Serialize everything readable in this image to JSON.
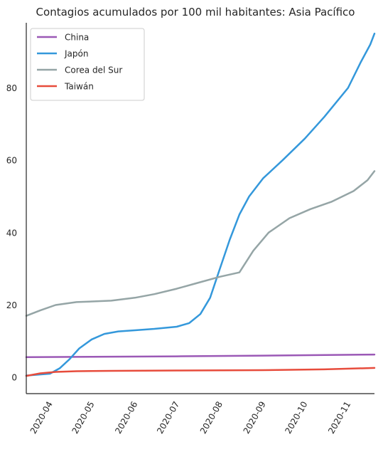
{
  "chart_data": {
    "type": "line",
    "title": "Contagios acumulados por 100 mil habitantes: Asia Pacífico",
    "xlabel": "",
    "ylabel": "",
    "x_range": [
      "2020-03-15",
      "2020-11-20"
    ],
    "ylim": [
      -4.5,
      98
    ],
    "yticks": [
      0,
      20,
      40,
      60,
      80
    ],
    "xticks": [
      "2020-04",
      "2020-05",
      "2020-06",
      "2020-07",
      "2020-08",
      "2020-09",
      "2020-10",
      "2020-11"
    ],
    "grid": false,
    "legend_position": "top-left",
    "series": [
      {
        "name": "China",
        "color": "#9b59b6",
        "points": [
          [
            "2020-03-15",
            5.6
          ],
          [
            "2020-05-01",
            5.7
          ],
          [
            "2020-07-01",
            5.8
          ],
          [
            "2020-09-01",
            6.0
          ],
          [
            "2020-11-20",
            6.3
          ]
        ]
      },
      {
        "name": "Japón",
        "color": "#3498db",
        "points": [
          [
            "2020-03-15",
            0.5
          ],
          [
            "2020-04-01",
            1.0
          ],
          [
            "2020-04-08",
            2.5
          ],
          [
            "2020-04-15",
            5.0
          ],
          [
            "2020-04-22",
            8.0
          ],
          [
            "2020-05-01",
            10.5
          ],
          [
            "2020-05-10",
            12.0
          ],
          [
            "2020-05-20",
            12.7
          ],
          [
            "2020-06-01",
            13.0
          ],
          [
            "2020-06-15",
            13.4
          ],
          [
            "2020-07-01",
            14.0
          ],
          [
            "2020-07-10",
            15.0
          ],
          [
            "2020-07-18",
            17.5
          ],
          [
            "2020-07-25",
            22.0
          ],
          [
            "2020-08-01",
            30.0
          ],
          [
            "2020-08-08",
            38.0
          ],
          [
            "2020-08-15",
            45.0
          ],
          [
            "2020-08-22",
            50.0
          ],
          [
            "2020-09-01",
            55.0
          ],
          [
            "2020-09-15",
            60.0
          ],
          [
            "2020-10-01",
            66.0
          ],
          [
            "2020-10-15",
            72.0
          ],
          [
            "2020-11-01",
            80.0
          ],
          [
            "2020-11-10",
            87.0
          ],
          [
            "2020-11-17",
            92.0
          ],
          [
            "2020-11-20",
            95.0
          ]
        ]
      },
      {
        "name": "Corea del Sur",
        "color": "#95a5a6",
        "points": [
          [
            "2020-03-15",
            17.0
          ],
          [
            "2020-03-25",
            18.5
          ],
          [
            "2020-04-05",
            20.0
          ],
          [
            "2020-04-20",
            20.8
          ],
          [
            "2020-05-15",
            21.2
          ],
          [
            "2020-06-01",
            22.0
          ],
          [
            "2020-06-15",
            23.0
          ],
          [
            "2020-07-01",
            24.5
          ],
          [
            "2020-07-15",
            26.0
          ],
          [
            "2020-08-01",
            27.8
          ],
          [
            "2020-08-15",
            29.0
          ],
          [
            "2020-08-25",
            35.0
          ],
          [
            "2020-09-05",
            40.0
          ],
          [
            "2020-09-20",
            44.0
          ],
          [
            "2020-10-05",
            46.5
          ],
          [
            "2020-10-20",
            48.5
          ],
          [
            "2020-11-05",
            51.5
          ],
          [
            "2020-11-15",
            54.5
          ],
          [
            "2020-11-20",
            57.0
          ]
        ]
      },
      {
        "name": "Taiwán",
        "color": "#e74c3c",
        "points": [
          [
            "2020-03-15",
            0.4
          ],
          [
            "2020-03-25",
            1.1
          ],
          [
            "2020-04-05",
            1.5
          ],
          [
            "2020-04-20",
            1.7
          ],
          [
            "2020-05-15",
            1.8
          ],
          [
            "2020-07-01",
            1.9
          ],
          [
            "2020-09-01",
            2.0
          ],
          [
            "2020-10-15",
            2.2
          ],
          [
            "2020-11-20",
            2.6
          ]
        ]
      }
    ]
  }
}
